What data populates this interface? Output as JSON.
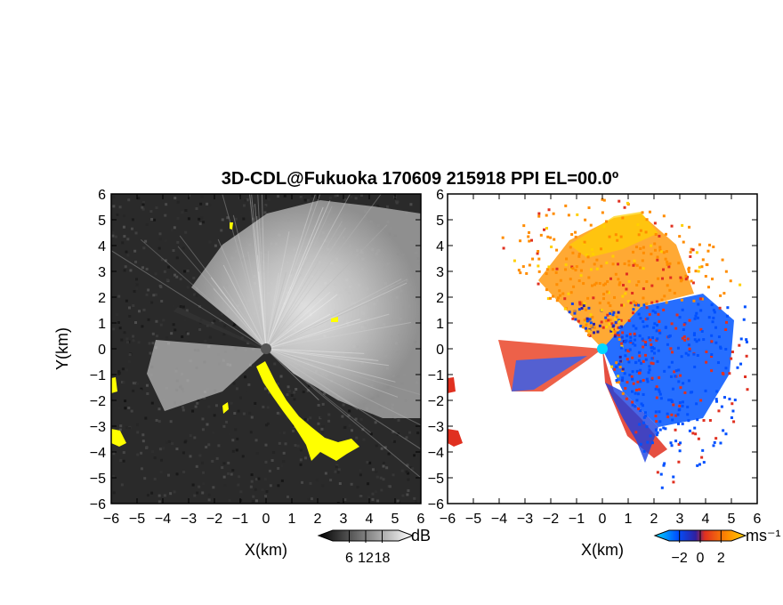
{
  "chart_data": [
    {
      "type": "heatmap",
      "panel": "left",
      "title": "3D-CDL@Fukuoka 170609 215918 PPI EL=00.0º",
      "xlabel": "X(km)",
      "ylabel": "Y(km)",
      "xlim": [
        -6,
        6
      ],
      "ylim": [
        -6,
        6
      ],
      "xticks": [
        "−6",
        "−5",
        "−4",
        "−3",
        "−2",
        "−1",
        "0",
        "1",
        "2",
        "3",
        "4",
        "5",
        "6"
      ],
      "yticks": [
        "6",
        "5",
        "4",
        "3",
        "2",
        "1",
        "0",
        "−1",
        "−2",
        "−3",
        "−4",
        "−5",
        "−6"
      ],
      "colorbar": {
        "unit": "dB",
        "ticks": [
          "6",
          "12",
          "18"
        ],
        "tick_values": [
          6,
          12,
          18
        ],
        "range": [
          0,
          24
        ],
        "colors": [
          "#000000",
          "#ffffff"
        ]
      },
      "mask_color": "#ffff00",
      "background_color": "#2a2a2a"
    },
    {
      "type": "heatmap",
      "panel": "right",
      "xlabel": "X(km)",
      "xlim": [
        -6,
        6
      ],
      "ylim": [
        -6,
        6
      ],
      "xticks": [
        "−6",
        "−5",
        "−4",
        "−3",
        "−2",
        "−1",
        "0",
        "1",
        "2",
        "3",
        "4",
        "5",
        "6"
      ],
      "yticks": [
        "6",
        "5",
        "4",
        "3",
        "2",
        "1",
        "0",
        "−1",
        "−2",
        "−3",
        "−4",
        "−5",
        "−6"
      ],
      "colorbar": {
        "unit": "ms⁻¹",
        "ticks": [
          "−2",
          "0",
          "2"
        ],
        "tick_values": [
          -2,
          0,
          2
        ],
        "range": [
          -3,
          3
        ],
        "colors": [
          "#00d8ff",
          "#0050ff",
          "#3020a0",
          "#e03020",
          "#ff8c00",
          "#ffd000"
        ]
      },
      "background_color": "#ffffff"
    }
  ]
}
